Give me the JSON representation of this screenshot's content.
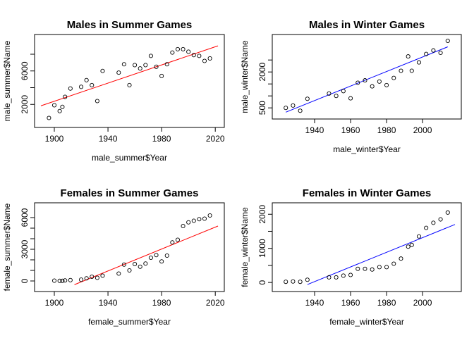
{
  "chart_data": [
    {
      "type": "scatter",
      "title": "Males in Summer Games",
      "xlabel": "male_summer$Year",
      "ylabel": "male_summer$Name",
      "xlim": [
        1890,
        2022
      ],
      "ylim": [
        0,
        9600
      ],
      "xticks": [
        1900,
        1940,
        1980,
        2020
      ],
      "yticks": [
        2000,
        4000,
        6000,
        8000
      ],
      "ytick_labels": [
        2000,
        6000
      ],
      "line_color": "#ff0000",
      "fit": {
        "x": [
          1890,
          2022
        ],
        "y": [
          1830,
          9000
        ]
      },
      "x": [
        1896,
        1900,
        1904,
        1906,
        1908,
        1912,
        1920,
        1924,
        1928,
        1932,
        1936,
        1948,
        1952,
        1956,
        1960,
        1964,
        1968,
        1972,
        1976,
        1980,
        1984,
        1988,
        1992,
        1996,
        2000,
        2004,
        2008,
        2012,
        2016
      ],
      "y": [
        380,
        1900,
        1200,
        1700,
        2900,
        3900,
        4100,
        4900,
        4300,
        2400,
        6000,
        5800,
        6800,
        4300,
        6700,
        6300,
        6700,
        7800,
        6500,
        5400,
        6800,
        8200,
        8600,
        8600,
        8300,
        7900,
        7800,
        7200,
        7500
      ]
    },
    {
      "type": "scatter",
      "title": "Males in Winter Games",
      "xlabel": "male_winter$Year",
      "ylabel": "male_winter$Name",
      "xlim": [
        1920,
        2018
      ],
      "ylim": [
        300,
        3300
      ],
      "xticks": [
        1940,
        1960,
        1980,
        2000
      ],
      "yticks": [
        500,
        1000,
        1500,
        2000,
        2500
      ],
      "ytick_labels": [
        500,
        2000
      ],
      "line_color": "#0000ff",
      "fit": {
        "x": [
          1924,
          2014
        ],
        "y": [
          320,
          3050
        ]
      },
      "x": [
        1924,
        1928,
        1932,
        1936,
        1948,
        1952,
        1956,
        1960,
        1964,
        1968,
        1972,
        1976,
        1980,
        1984,
        1988,
        1992,
        1994,
        1998,
        2002,
        2006,
        2010,
        2014
      ],
      "y": [
        500,
        600,
        380,
        880,
        1100,
        1000,
        1200,
        900,
        1550,
        1650,
        1400,
        1600,
        1450,
        1750,
        2050,
        2650,
        2050,
        2400,
        2750,
        2900,
        2800,
        3300
      ]
    },
    {
      "type": "scatter",
      "title": "Females in Summer Games",
      "xlabel": "female_summer$Year",
      "ylabel": "female_summer$Name",
      "xlim": [
        1890,
        2022
      ],
      "ylim": [
        -400,
        6800
      ],
      "xticks": [
        1900,
        1940,
        1980,
        2020
      ],
      "yticks": [
        0,
        1000,
        2000,
        3000,
        4000,
        5000,
        6000
      ],
      "ytick_labels": [
        0,
        3000,
        6000
      ],
      "line_color": "#ff0000",
      "fit": {
        "x": [
          1915,
          2022
        ],
        "y": [
          -350,
          5200
        ]
      },
      "x": [
        1900,
        1904,
        1906,
        1908,
        1912,
        1920,
        1924,
        1928,
        1932,
        1936,
        1948,
        1952,
        1956,
        1960,
        1964,
        1968,
        1972,
        1976,
        1980,
        1984,
        1988,
        1992,
        1996,
        2000,
        2004,
        2008,
        2012,
        2016
      ],
      "y": [
        30,
        10,
        10,
        50,
        80,
        120,
        250,
        400,
        300,
        500,
        700,
        1550,
        1000,
        1600,
        1350,
        1650,
        2200,
        2450,
        1850,
        2400,
        3650,
        3900,
        5200,
        5550,
        5700,
        5850,
        5900,
        6200
      ]
    },
    {
      "type": "scatter",
      "title": "Females in Winter Games",
      "xlabel": "female_winter$Year",
      "ylabel": "female_winter$Name",
      "xlim": [
        1920,
        2018
      ],
      "ylim": [
        -80,
        2150
      ],
      "xticks": [
        1940,
        1960,
        1980,
        2000
      ],
      "yticks": [
        0,
        500,
        1000,
        1500,
        2000
      ],
      "ytick_labels": [
        0,
        1000,
        2000
      ],
      "line_color": "#0000ff",
      "fit": {
        "x": [
          1936,
          2018
        ],
        "y": [
          -60,
          1700
        ]
      },
      "x": [
        1924,
        1928,
        1932,
        1936,
        1948,
        1952,
        1956,
        1960,
        1964,
        1968,
        1972,
        1976,
        1980,
        1984,
        1988,
        1992,
        1994,
        1998,
        2002,
        2006,
        2010,
        2014
      ],
      "y": [
        20,
        30,
        20,
        80,
        150,
        150,
        200,
        220,
        400,
        400,
        380,
        450,
        450,
        550,
        700,
        1050,
        1100,
        1350,
        1600,
        1750,
        1850,
        2050
      ]
    }
  ]
}
